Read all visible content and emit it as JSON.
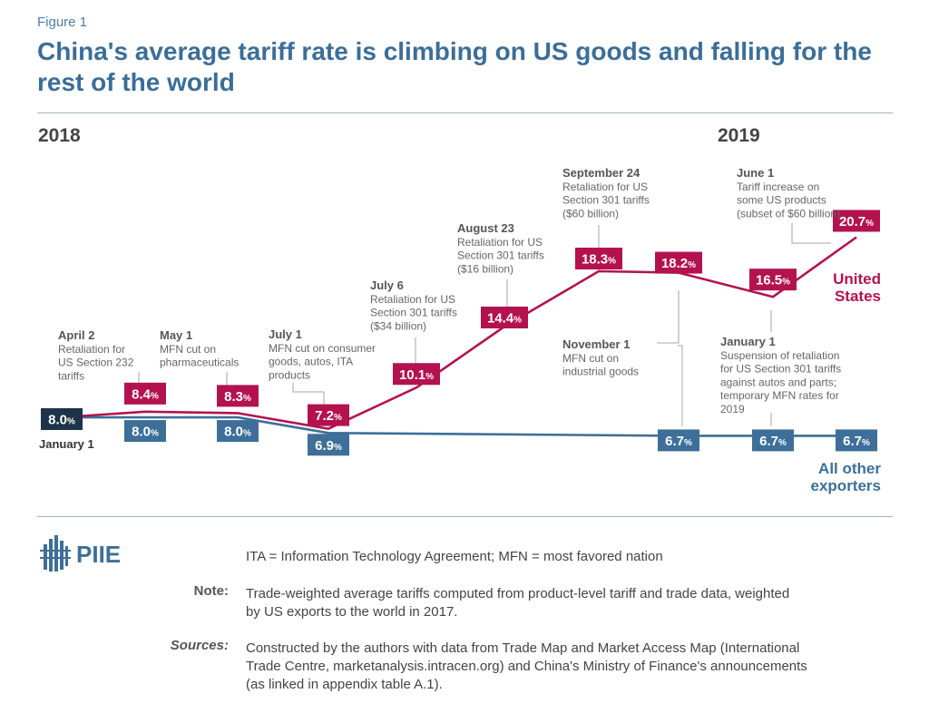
{
  "figure_label": "Figure 1",
  "title": "China's average tariff rate is climbing on US goods and falling for the rest of the world",
  "year_left": "2018",
  "year_right": "2019",
  "chart_data": {
    "type": "line",
    "series": [
      {
        "name": "United States",
        "name_lines": [
          "United",
          "States"
        ],
        "color": "#b3124f",
        "points": [
          {
            "date": "2018-01-01",
            "value": 8.0,
            "label": "8.0"
          },
          {
            "date": "2018-04-02",
            "value": 8.4,
            "label": "8.4"
          },
          {
            "date": "2018-05-01",
            "value": 8.3,
            "label": "8.3"
          },
          {
            "date": "2018-07-01",
            "value": 7.2,
            "label": "7.2"
          },
          {
            "date": "2018-07-06",
            "value": 10.1,
            "label": "10.1"
          },
          {
            "date": "2018-08-23",
            "value": 14.4,
            "label": "14.4"
          },
          {
            "date": "2018-09-24",
            "value": 18.3,
            "label": "18.3"
          },
          {
            "date": "2018-11-01",
            "value": 18.2,
            "label": "18.2"
          },
          {
            "date": "2019-01-01",
            "value": 16.5,
            "label": "16.5"
          },
          {
            "date": "2019-06-01",
            "value": 20.7,
            "label": "20.7"
          }
        ]
      },
      {
        "name": "All other exporters",
        "name_lines": [
          "All other",
          "exporters"
        ],
        "color": "#3d6f98",
        "points": [
          {
            "date": "2018-01-01",
            "value": 8.0,
            "label": "8.0"
          },
          {
            "date": "2018-04-02",
            "value": 8.0,
            "label": "8.0"
          },
          {
            "date": "2018-05-01",
            "value": 8.0,
            "label": "8.0"
          },
          {
            "date": "2018-07-01",
            "value": 6.9,
            "label": "6.9"
          },
          {
            "date": "2018-11-01",
            "value": 6.7,
            "label": "6.7"
          },
          {
            "date": "2019-01-01",
            "value": 6.7,
            "label": "6.7"
          },
          {
            "date": "2019-06-01",
            "value": 6.7,
            "label": "6.7"
          }
        ]
      }
    ],
    "shared_start_label": "8.0",
    "shared_start_color": "#1d3348",
    "unit": "%",
    "start_label": "January 1",
    "annotations": [
      {
        "title": "April 2",
        "lines": [
          "Retaliation for",
          "US Section 232",
          "tariffs"
        ]
      },
      {
        "title": "May 1",
        "lines": [
          "MFN cut on",
          "pharmaceuticals"
        ]
      },
      {
        "title": "July 1",
        "lines": [
          "MFN cut on consumer",
          "goods, autos, ITA",
          "products"
        ]
      },
      {
        "title": "July 6",
        "lines": [
          "Retaliation for US",
          "Section 301 tariffs",
          "($34 billion)"
        ]
      },
      {
        "title": "August 23",
        "lines": [
          "Retaliation for US",
          "Section 301 tariffs",
          "($16 billion)"
        ]
      },
      {
        "title": "September 24",
        "lines": [
          "Retaliation for US",
          "Section 301 tariffs",
          "($60 billion)"
        ]
      },
      {
        "title": "November 1",
        "lines": [
          "MFN cut on",
          "industrial goods"
        ]
      },
      {
        "title": "January 1",
        "lines": [
          "Suspension of retaliation",
          "for US Section 301 tariffs",
          "against autos and parts;",
          "temporary MFN rates for",
          "2019"
        ]
      },
      {
        "title": "June 1",
        "lines": [
          "Tariff increase on",
          "some US products",
          "(subset of $60 billion)"
        ]
      }
    ]
  },
  "logo_text": "PIIE",
  "footer": {
    "abbrev": "ITA = Information Technology Agreement; MFN = most favored nation",
    "note_label": "Note:",
    "note_lines": [
      "Trade-weighted average tariffs computed from product-level tariff and trade data, weighted",
      "by US exports to the world in 2017."
    ],
    "sources_label": "Sources:",
    "sources_lines": [
      "Constructed by the authors with data from Trade Map and Market Access Map (International",
      "Trade Centre, marketanalysis.intracen.org) and China's Ministry of Finance's announcements",
      "(as linked in appendix table A.1)."
    ]
  }
}
